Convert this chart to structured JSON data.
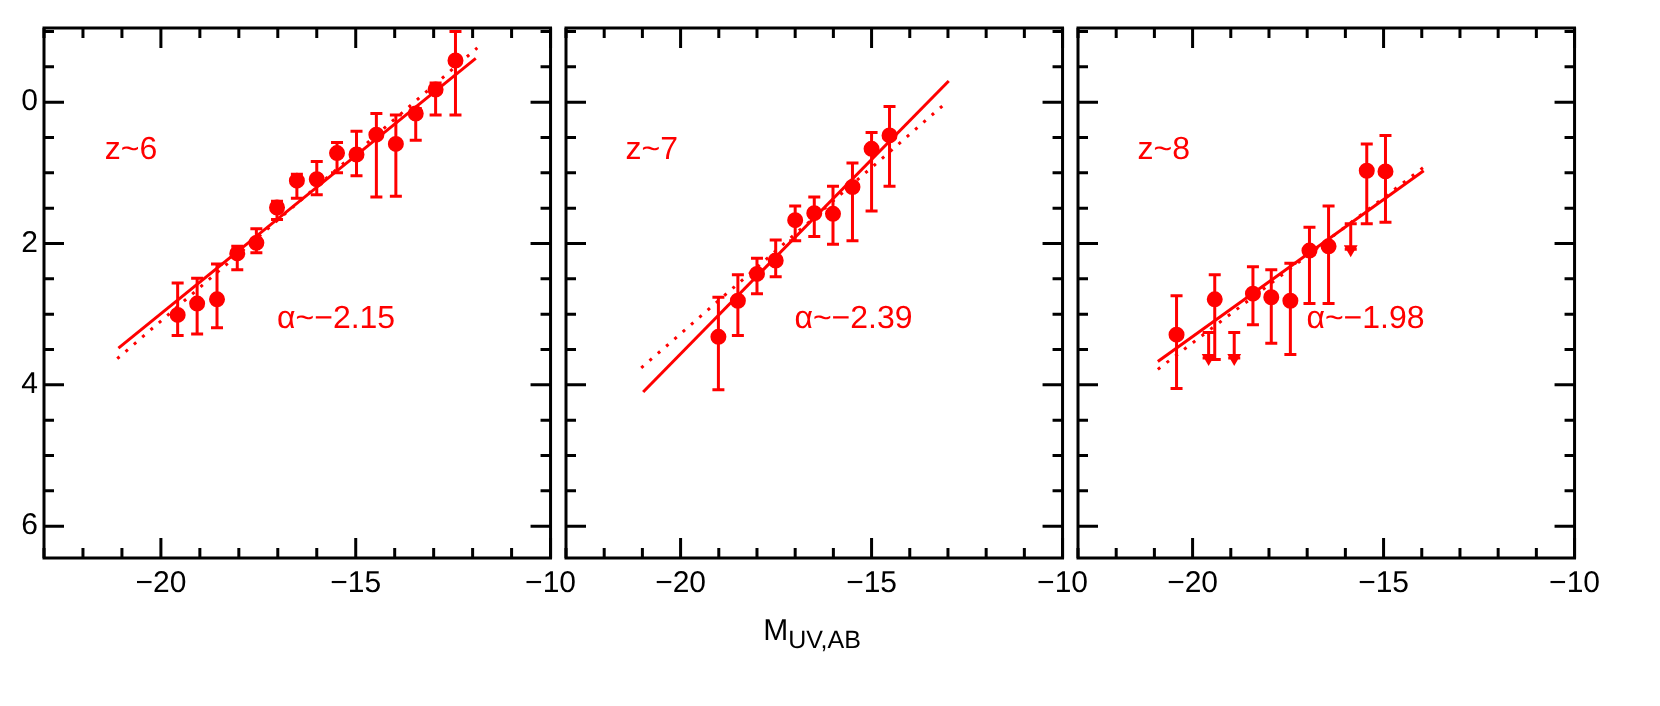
{
  "chart_data": [
    {
      "type": "scatter",
      "annotations": [
        "z~6",
        "α~−2.15"
      ],
      "xlim": [
        -23,
        -10
      ],
      "ylim": [
        6.45,
        -1.05
      ],
      "xticks": [
        {
          "value": -23,
          "label": null
        },
        {
          "value": -22,
          "label": null
        },
        {
          "value": -21,
          "label": null
        },
        -20,
        {
          "value": -19,
          "label": null
        },
        {
          "value": -18,
          "label": null
        },
        {
          "value": -17,
          "label": null
        },
        {
          "value": -16,
          "label": null
        },
        -15,
        {
          "value": -14,
          "label": null
        },
        {
          "value": -13,
          "label": null
        },
        {
          "value": -12,
          "label": null
        },
        {
          "value": -11,
          "label": null
        },
        -10
      ],
      "yticks": [
        {
          "value": -1,
          "label": null
        },
        {
          "value": -0.5,
          "label": null
        },
        0,
        {
          "value": 0.5,
          "label": null
        },
        {
          "value": 1,
          "label": null
        },
        {
          "value": 1.5,
          "label": null
        },
        2,
        {
          "value": 2.5,
          "label": null
        },
        {
          "value": 3,
          "label": null
        },
        {
          "value": 3.5,
          "label": null
        },
        4,
        {
          "value": 4.5,
          "label": null
        },
        {
          "value": 5,
          "label": null
        },
        {
          "value": 5.5,
          "label": null
        },
        6
      ],
      "grid": false,
      "legend": false,
      "series": [
        {
          "type": "scatter",
          "marker": "circle",
          "color": "#ff0000",
          "x": [
            -19.57,
            -19.07,
            -18.56,
            -18.04,
            -17.55,
            -17.02,
            -16.51,
            -16.0,
            -15.48,
            -14.98,
            -14.47,
            -13.97,
            -13.46,
            -12.95,
            -12.44
          ],
          "values": [
            3.01,
            2.85,
            2.79,
            2.14,
            1.99,
            1.49,
            1.11,
            1.09,
            0.72,
            0.74,
            0.46,
            0.59,
            0.16,
            -0.18,
            -0.59
          ],
          "errors": [
            [
              2.56,
              3.3
            ],
            [
              2.49,
              3.28
            ],
            [
              2.29,
              3.19
            ],
            [
              2.04,
              2.37
            ],
            [
              1.79,
              2.13
            ],
            [
              1.4,
              1.66
            ],
            [
              1.02,
              1.36
            ],
            [
              0.84,
              1.31
            ],
            [
              0.57,
              1.0
            ],
            [
              0.41,
              1.04
            ],
            [
              0.16,
              1.34
            ],
            [
              0.18,
              1.33
            ],
            [
              0.09,
              0.54
            ],
            [
              -0.27,
              0.18
            ],
            [
              -1.0,
              0.18
            ]
          ]
        },
        {
          "type": "line",
          "line_style": "solid",
          "color": "#ff0000",
          "x": [
            -21.09,
            -11.92
          ],
          "values": [
            3.48,
            -0.62
          ]
        },
        {
          "type": "line",
          "line_style": "dotted",
          "color": "#ff0000",
          "x": [
            -21.12,
            -11.88
          ],
          "values": [
            3.63,
            -0.77
          ]
        }
      ]
    },
    {
      "type": "scatter",
      "annotations": [
        "z~7",
        "α~−2.39"
      ],
      "xlabel": "M$_{UV,AB}$",
      "tick_labels": "x",
      "xlim": [
        -23,
        -10
      ],
      "ylim": [
        6.45,
        -1.05
      ],
      "xticks": [
        {
          "value": -23,
          "label": null
        },
        {
          "value": -22,
          "label": null
        },
        {
          "value": -21,
          "label": null
        },
        -20,
        {
          "value": -19,
          "label": null
        },
        {
          "value": -18,
          "label": null
        },
        {
          "value": -17,
          "label": null
        },
        {
          "value": -16,
          "label": null
        },
        -15,
        {
          "value": -14,
          "label": null
        },
        {
          "value": -13,
          "label": null
        },
        {
          "value": -12,
          "label": null
        },
        {
          "value": -11,
          "label": null
        },
        -10
      ],
      "yticks": [
        {
          "value": -1,
          "label": null
        },
        {
          "value": -0.5,
          "label": null
        },
        {
          "value": 0,
          "label": null
        },
        {
          "value": 0.5,
          "label": null
        },
        {
          "value": 1,
          "label": null
        },
        {
          "value": 1.5,
          "label": null
        },
        {
          "value": 2,
          "label": null
        },
        {
          "value": 2.5,
          "label": null
        },
        {
          "value": 3,
          "label": null
        },
        {
          "value": 3.5,
          "label": null
        },
        {
          "value": 4,
          "label": null
        },
        {
          "value": 4.5,
          "label": null
        },
        {
          "value": 5,
          "label": null
        },
        {
          "value": 5.5,
          "label": null
        },
        {
          "value": 6,
          "label": null
        }
      ],
      "grid": false,
      "legend": false,
      "series": [
        {
          "type": "scatter",
          "marker": "circle",
          "color": "#ff0000",
          "x": [
            -19.01,
            -18.5,
            -18.0,
            -17.51,
            -17.0,
            -16.5,
            -16.01,
            -15.5,
            -15.0,
            -14.53
          ],
          "values": [
            3.32,
            2.81,
            2.43,
            2.24,
            1.67,
            1.57,
            1.58,
            1.2,
            0.66,
            0.47
          ],
          "errors": [
            [
              2.76,
              4.07
            ],
            [
              2.44,
              3.3
            ],
            [
              2.21,
              2.71
            ],
            [
              1.95,
              2.47
            ],
            [
              1.47,
              1.96
            ],
            [
              1.34,
              1.9
            ],
            [
              1.19,
              2.01
            ],
            [
              0.86,
              1.96
            ],
            [
              0.43,
              1.54
            ],
            [
              0.06,
              1.19
            ]
          ]
        },
        {
          "type": "line",
          "line_style": "solid",
          "color": "#ff0000",
          "x": [
            -20.98,
            -12.98
          ],
          "values": [
            4.1,
            -0.3
          ]
        },
        {
          "type": "line",
          "line_style": "dotted",
          "color": "#ff0000",
          "x": [
            -21.03,
            -13.14
          ],
          "values": [
            3.76,
            0.05
          ]
        }
      ]
    },
    {
      "type": "scatter",
      "annotations": [
        "z~8",
        "α~−1.98"
      ],
      "tick_labels": "x",
      "xlim": [
        -23,
        -10
      ],
      "ylim": [
        6.45,
        -1.05
      ],
      "xticks": [
        {
          "value": -23,
          "label": null
        },
        {
          "value": -22,
          "label": null
        },
        {
          "value": -21,
          "label": null
        },
        -20,
        {
          "value": -19,
          "label": null
        },
        {
          "value": -18,
          "label": null
        },
        {
          "value": -17,
          "label": null
        },
        {
          "value": -16,
          "label": null
        },
        -15,
        {
          "value": -14,
          "label": null
        },
        {
          "value": -13,
          "label": null
        },
        {
          "value": -12,
          "label": null
        },
        {
          "value": -11,
          "label": null
        },
        -10
      ],
      "yticks": [
        {
          "value": -1,
          "label": null
        },
        {
          "value": -0.5,
          "label": null
        },
        {
          "value": 0,
          "label": null
        },
        {
          "value": 0.5,
          "label": null
        },
        {
          "value": 1,
          "label": null
        },
        {
          "value": 1.5,
          "label": null
        },
        {
          "value": 2,
          "label": null
        },
        {
          "value": 2.5,
          "label": null
        },
        {
          "value": 3,
          "label": null
        },
        {
          "value": 3.5,
          "label": null
        },
        {
          "value": 4,
          "label": null
        },
        {
          "value": 4.5,
          "label": null
        },
        {
          "value": 5,
          "label": null
        },
        {
          "value": 5.5,
          "label": null
        },
        {
          "value": 6,
          "label": null
        }
      ],
      "grid": false,
      "legend": false,
      "series": [
        {
          "type": "scatter",
          "marker": "circle",
          "color": "#ff0000",
          "x": [
            -20.42,
            -19.42,
            -18.42,
            -17.94,
            -17.44,
            -16.94,
            -16.44,
            -15.44,
            -14.95
          ],
          "values": [
            3.29,
            2.79,
            2.71,
            2.76,
            2.81,
            2.1,
            2.04,
            0.97,
            0.98
          ],
          "errors": [
            [
              2.74,
              4.05
            ],
            [
              2.44,
              3.64
            ],
            [
              2.33,
              3.15
            ],
            [
              2.37,
              3.41
            ],
            [
              2.28,
              3.57
            ],
            [
              1.77,
              2.85
            ],
            [
              1.47,
              2.85
            ],
            [
              0.59,
              1.72
            ],
            [
              0.47,
              1.7
            ]
          ]
        },
        {
          "type": "scatter",
          "marker": "triangle",
          "color": "#ff0000",
          "x": [
            -19.58,
            -18.91,
            -15.86
          ],
          "values": [
            3.62,
            3.62,
            2.08
          ],
          "errors": [
            [
              3.26,
              3.62
            ],
            [
              3.26,
              3.62
            ],
            [
              1.72,
              2.08
            ]
          ]
        },
        {
          "type": "line",
          "line_style": "solid",
          "color": "#ff0000",
          "x": [
            -20.91,
            -13.95
          ],
          "values": [
            3.67,
            0.97
          ]
        },
        {
          "type": "line",
          "line_style": "dotted",
          "color": "#ff0000",
          "x": [
            -20.91,
            -13.95
          ],
          "values": [
            3.78,
            0.92
          ]
        }
      ]
    }
  ]
}
